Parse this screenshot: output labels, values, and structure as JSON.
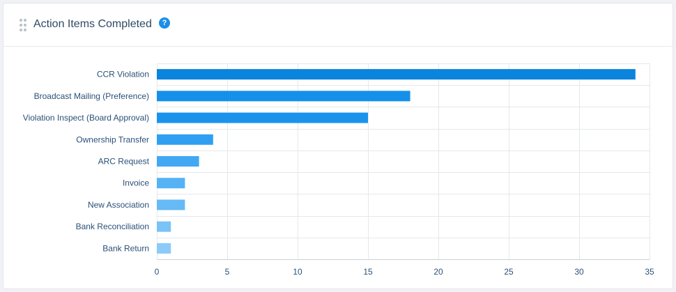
{
  "widget": {
    "title": "Action Items Completed",
    "help_icon": "question-circle-icon",
    "help_glyph": "?"
  },
  "chart_data": {
    "type": "bar",
    "orientation": "horizontal",
    "title": "",
    "xlabel": "",
    "ylabel": "",
    "categories": [
      "CCR Violation",
      "Broadcast Mailing (Preference)",
      "Violation Inspect (Board Approval)",
      "Ownership Transfer",
      "ARC Request",
      "Invoice",
      "New Association",
      "Bank Reconciliation",
      "Bank Return"
    ],
    "values": [
      34,
      18,
      15,
      4,
      3,
      2,
      2,
      1,
      1
    ],
    "xlim": [
      0,
      35
    ],
    "xticks": [
      0,
      5,
      10,
      15,
      20,
      25,
      30,
      35
    ],
    "grid": true,
    "legend": "none",
    "colors": [
      "#0a84dc",
      "#1590ea",
      "#1b93ec",
      "#2f9ff2",
      "#42a8f3",
      "#55b2f4",
      "#66baf5",
      "#7ac3f6",
      "#8ccbf7"
    ]
  }
}
